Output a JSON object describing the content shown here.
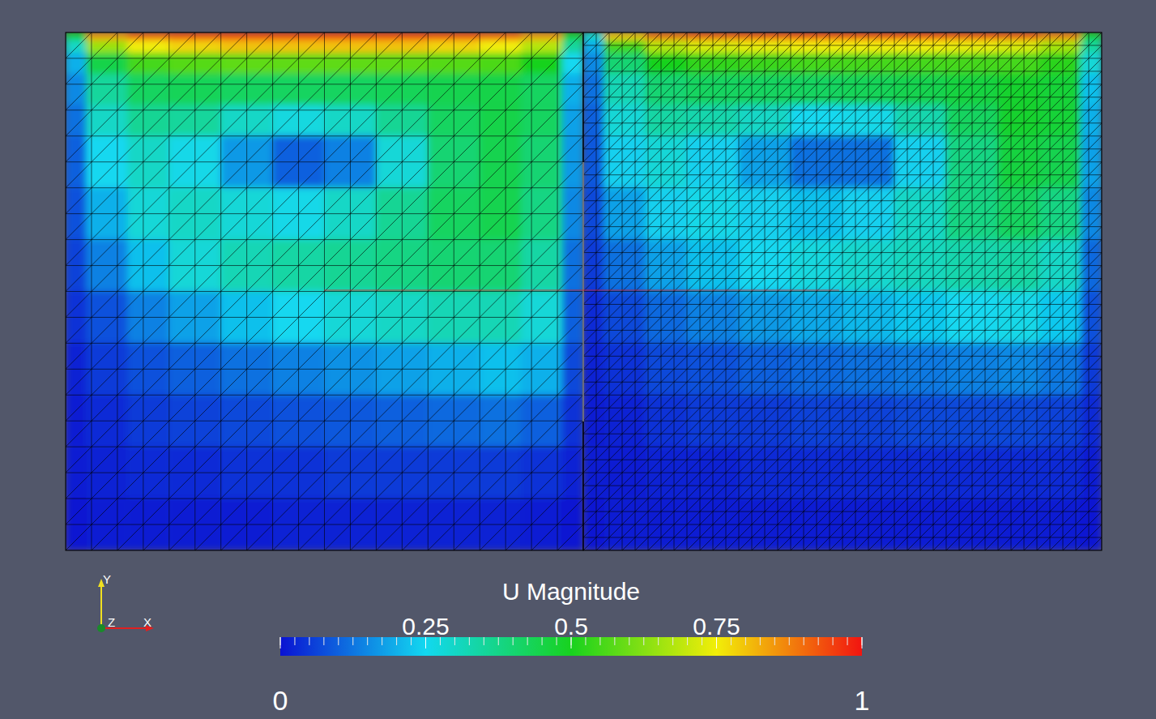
{
  "chart_data": {
    "type": "heatmap",
    "tick_labels": false,
    "triad_labels": {
      "x": "X",
      "y": "Y",
      "z": "Z"
    },
    "colorbar": {
      "title": "U Magnitude",
      "range": [
        0,
        1
      ],
      "ticks": [
        0,
        0.25,
        0.5,
        0.75,
        1
      ],
      "minor_ticks": [
        0,
        0.025,
        0.05,
        0.075,
        0.1,
        0.125,
        0.15,
        0.175,
        0.2,
        0.225,
        0.25,
        0.275,
        0.3,
        0.325,
        0.35,
        0.375,
        0.4,
        0.425,
        0.45,
        0.475,
        0.5,
        0.525,
        0.55,
        0.575,
        0.6,
        0.625,
        0.65,
        0.675,
        0.7,
        0.725,
        0.75,
        0.775,
        0.8,
        0.825,
        0.85,
        0.875,
        0.9,
        0.925,
        0.95,
        0.975,
        1
      ]
    },
    "panels": [
      {
        "xlim": [
          0,
          1
        ],
        "ylim": [
          0,
          1
        ],
        "x_edges": [
          0,
          0.04,
          0.12,
          0.2,
          0.3,
          0.4,
          0.5,
          0.6,
          0.7,
          0.8,
          0.88,
          0.96,
          1
        ],
        "y_edges": [
          1,
          0.985,
          0.96,
          0.92,
          0.86,
          0.8,
          0.7,
          0.6,
          0.5,
          0.4,
          0.3,
          0.2,
          0.1,
          0
        ],
        "cells": [
          [
            0.5,
            0.85,
            0.92,
            0.94,
            0.95,
            0.95,
            0.95,
            0.95,
            0.94,
            0.92,
            0.85,
            0.5
          ],
          [
            0.3,
            0.65,
            0.75,
            0.78,
            0.8,
            0.8,
            0.8,
            0.8,
            0.78,
            0.75,
            0.68,
            0.35
          ],
          [
            0.2,
            0.45,
            0.55,
            0.57,
            0.58,
            0.58,
            0.58,
            0.58,
            0.57,
            0.56,
            0.5,
            0.25
          ],
          [
            0.15,
            0.35,
            0.42,
            0.43,
            0.42,
            0.42,
            0.42,
            0.43,
            0.44,
            0.45,
            0.42,
            0.2
          ],
          [
            0.12,
            0.3,
            0.36,
            0.35,
            0.3,
            0.27,
            0.3,
            0.36,
            0.42,
            0.45,
            0.42,
            0.18
          ],
          [
            0.1,
            0.25,
            0.3,
            0.26,
            0.17,
            0.1,
            0.14,
            0.28,
            0.4,
            0.44,
            0.4,
            0.17
          ],
          [
            0.08,
            0.2,
            0.28,
            0.3,
            0.28,
            0.26,
            0.3,
            0.36,
            0.42,
            0.44,
            0.38,
            0.15
          ],
          [
            0.06,
            0.14,
            0.22,
            0.28,
            0.32,
            0.34,
            0.36,
            0.38,
            0.4,
            0.4,
            0.34,
            0.12
          ],
          [
            0.04,
            0.08,
            0.14,
            0.18,
            0.22,
            0.25,
            0.28,
            0.3,
            0.32,
            0.32,
            0.28,
            0.1
          ],
          [
            0.02,
            0.05,
            0.08,
            0.1,
            0.12,
            0.14,
            0.16,
            0.18,
            0.2,
            0.22,
            0.2,
            0.07
          ],
          [
            0.01,
            0.03,
            0.05,
            0.06,
            0.07,
            0.08,
            0.09,
            0.1,
            0.11,
            0.12,
            0.1,
            0.04
          ],
          [
            0.01,
            0.02,
            0.03,
            0.03,
            0.04,
            0.04,
            0.05,
            0.05,
            0.05,
            0.05,
            0.04,
            0.02
          ],
          [
            0,
            0.01,
            0.01,
            0.01,
            0.01,
            0.02,
            0.02,
            0.02,
            0.02,
            0.02,
            0.01,
            0
          ]
        ]
      },
      {
        "xlim": [
          0,
          1
        ],
        "ylim": [
          0,
          1
        ],
        "x_edges": [
          0,
          0.04,
          0.12,
          0.2,
          0.3,
          0.4,
          0.5,
          0.6,
          0.7,
          0.8,
          0.88,
          0.96,
          1
        ],
        "y_edges": [
          1,
          0.985,
          0.96,
          0.92,
          0.86,
          0.8,
          0.7,
          0.6,
          0.5,
          0.4,
          0.3,
          0.2,
          0.1,
          0
        ],
        "cells": [
          [
            0.3,
            0.8,
            0.9,
            0.93,
            0.94,
            0.95,
            0.95,
            0.95,
            0.94,
            0.93,
            0.88,
            0.5
          ],
          [
            0.2,
            0.55,
            0.68,
            0.72,
            0.74,
            0.75,
            0.75,
            0.75,
            0.74,
            0.72,
            0.66,
            0.35
          ],
          [
            0.15,
            0.4,
            0.5,
            0.53,
            0.54,
            0.55,
            0.55,
            0.55,
            0.55,
            0.55,
            0.52,
            0.28
          ],
          [
            0.12,
            0.32,
            0.4,
            0.42,
            0.42,
            0.42,
            0.43,
            0.44,
            0.46,
            0.48,
            0.47,
            0.22
          ],
          [
            0.1,
            0.28,
            0.34,
            0.33,
            0.3,
            0.25,
            0.26,
            0.33,
            0.42,
            0.48,
            0.47,
            0.2
          ],
          [
            0.09,
            0.24,
            0.28,
            0.24,
            0.18,
            0.12,
            0.12,
            0.24,
            0.38,
            0.46,
            0.44,
            0.18
          ],
          [
            0.07,
            0.18,
            0.24,
            0.26,
            0.24,
            0.22,
            0.24,
            0.3,
            0.38,
            0.42,
            0.38,
            0.15
          ],
          [
            0.05,
            0.12,
            0.18,
            0.22,
            0.25,
            0.27,
            0.29,
            0.31,
            0.33,
            0.34,
            0.3,
            0.11
          ],
          [
            0.03,
            0.07,
            0.11,
            0.14,
            0.17,
            0.19,
            0.21,
            0.23,
            0.25,
            0.26,
            0.23,
            0.08
          ],
          [
            0.02,
            0.04,
            0.07,
            0.08,
            0.1,
            0.11,
            0.12,
            0.13,
            0.14,
            0.15,
            0.13,
            0.05
          ],
          [
            0.01,
            0.02,
            0.04,
            0.05,
            0.05,
            0.06,
            0.06,
            0.07,
            0.07,
            0.07,
            0.06,
            0.03
          ],
          [
            0.01,
            0.01,
            0.02,
            0.02,
            0.03,
            0.03,
            0.03,
            0.03,
            0.03,
            0.03,
            0.03,
            0.01
          ],
          [
            0,
            0.01,
            0.01,
            0.01,
            0.01,
            0.01,
            0.01,
            0.01,
            0.01,
            0.01,
            0.01,
            0
          ]
        ]
      }
    ]
  }
}
